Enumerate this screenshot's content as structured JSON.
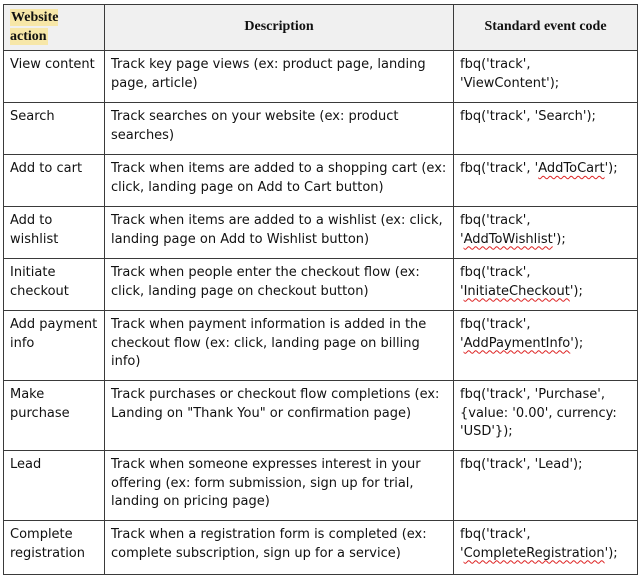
{
  "header": {
    "action": "Website action",
    "description": "Description",
    "code": "Standard event code",
    "highlight_color": "#f7e7a8"
  },
  "rows": [
    {
      "action": "View content",
      "description": "Track key page views (ex: product page, landing page, article)",
      "code": {
        "before": "fbq('track', 'ViewContent');",
        "wavy": "",
        "after": ""
      },
      "height": 52
    },
    {
      "action": "Search",
      "description": "Track searches on your website (ex: product searches)",
      "code": {
        "before": "fbq('track', 'Search');",
        "wavy": "",
        "after": ""
      },
      "height": 52
    },
    {
      "action": "Add to cart",
      "description": "Track when items are added to a shopping cart (ex: click, landing page on Add to Cart button)",
      "code": {
        "before": "fbq('track', '",
        "wavy": "AddToCart",
        "after": "');"
      },
      "height": 52
    },
    {
      "action": "Add to wishlist",
      "description": "Track when items are added to a wishlist (ex: click, landing page on Add to Wishlist button)",
      "code": {
        "before": "fbq('track', '",
        "wavy": "AddToWishlist",
        "after": "');"
      },
      "height": 52
    },
    {
      "action": "Initiate checkout",
      "description": "Track when people enter the checkout flow (ex: click, landing page on checkout button)",
      "code": {
        "before": "fbq('track', '",
        "wavy": "InitiateCheckout",
        "after": "');"
      },
      "height": 52
    },
    {
      "action": "Add payment info",
      "description": "Track when payment information is added in the checkout flow (ex: click, landing page on billing info)",
      "code": {
        "before": "fbq('track', '",
        "wavy": "AddPaymentInfo",
        "after": "');"
      },
      "height": 70
    },
    {
      "action": "Make purchase",
      "description": "Track purchases or checkout flow completions (ex: Landing on \"Thank You\" or confirmation page)",
      "code": {
        "before": "fbq('track', 'Purchase', {value: '0.00', currency: 'USD'});",
        "wavy": "",
        "after": ""
      },
      "height": 70
    },
    {
      "action": "Lead",
      "description": "Track when someone expresses interest in your offering (ex: form submission, sign up for trial, landing on pricing page)",
      "code": {
        "before": "fbq('track', 'Lead');",
        "wavy": "",
        "after": ""
      },
      "height": 70
    },
    {
      "action": "Complete registration",
      "description": "Track when a registration form is completed (ex: complete subscription, sign up for a service)",
      "code": {
        "before": "fbq('track', '",
        "wavy": "CompleteRegistration",
        "after": "');"
      },
      "height": 54
    }
  ]
}
